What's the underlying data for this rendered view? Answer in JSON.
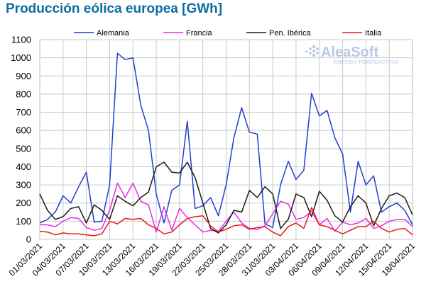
{
  "title": "Producción eólica europea [GWh]",
  "logo": {
    "name": "AleaSoft",
    "tagline": "ENERGY FORECASTING"
  },
  "chart_data": {
    "type": "line",
    "title": "Producción eólica europea [GWh]",
    "xlabel": "",
    "ylabel": "",
    "ylim": [
      0,
      1100
    ],
    "yticks": [
      0,
      100,
      200,
      300,
      400,
      500,
      600,
      700,
      800,
      900,
      1000,
      1100
    ],
    "grid": true,
    "legend": "top",
    "x": [
      "01/03/2021",
      "02/03/2021",
      "03/03/2021",
      "04/03/2021",
      "05/03/2021",
      "06/03/2021",
      "07/03/2021",
      "08/03/2021",
      "09/03/2021",
      "10/03/2021",
      "11/03/2021",
      "12/03/2021",
      "13/03/2021",
      "14/03/2021",
      "15/03/2021",
      "16/03/2021",
      "17/03/2021",
      "18/03/2021",
      "19/03/2021",
      "20/03/2021",
      "21/03/2021",
      "22/03/2021",
      "23/03/2021",
      "24/03/2021",
      "25/03/2021",
      "26/03/2021",
      "27/03/2021",
      "28/03/2021",
      "29/03/2021",
      "30/03/2021",
      "31/03/2021",
      "01/04/2021",
      "02/04/2021",
      "03/04/2021",
      "04/04/2021",
      "05/04/2021",
      "06/04/2021",
      "07/04/2021",
      "08/04/2021",
      "09/04/2021",
      "10/04/2021",
      "11/04/2021",
      "12/04/2021",
      "13/04/2021",
      "14/04/2021",
      "15/04/2021",
      "16/04/2021",
      "17/04/2021",
      "18/04/2021"
    ],
    "xtick_labels": [
      "01/03/2021",
      "04/03/2021",
      "07/03/2021",
      "10/03/2021",
      "13/03/2021",
      "16/03/2021",
      "19/03/2021",
      "22/03/2021",
      "25/03/2021",
      "28/03/2021",
      "31/03/2021",
      "03/04/2021",
      "06/04/2021",
      "09/04/2021",
      "12/04/2021",
      "15/04/2021",
      "18/04/2021"
    ],
    "series": [
      {
        "name": "Alemania",
        "color": "#1f3fd4",
        "values": [
          90,
          110,
          150,
          240,
          200,
          290,
          370,
          95,
          100,
          300,
          1025,
          990,
          1000,
          740,
          600,
          250,
          90,
          270,
          300,
          650,
          170,
          185,
          230,
          130,
          300,
          560,
          725,
          590,
          580,
          85,
          65,
          300,
          430,
          330,
          380,
          805,
          680,
          710,
          560,
          470,
          150,
          430,
          300,
          350,
          150,
          180,
          200,
          160,
          80
        ]
      },
      {
        "name": "Francia",
        "color": "#e62ee6",
        "values": [
          80,
          80,
          70,
          100,
          120,
          115,
          65,
          50,
          60,
          160,
          310,
          230,
          310,
          210,
          190,
          40,
          180,
          50,
          170,
          120,
          80,
          40,
          50,
          45,
          100,
          150,
          90,
          60,
          55,
          75,
          140,
          210,
          195,
          110,
          120,
          155,
          80,
          115,
          45,
          95,
          80,
          90,
          115,
          60,
          75,
          100,
          110,
          110,
          70
        ]
      },
      {
        "name": "Pen. Ibérica",
        "color": "#1a1a1a",
        "values": [
          250,
          160,
          110,
          125,
          170,
          180,
          90,
          190,
          160,
          110,
          240,
          210,
          185,
          230,
          260,
          400,
          425,
          370,
          365,
          425,
          340,
          200,
          60,
          35,
          80,
          160,
          150,
          270,
          230,
          290,
          250,
          60,
          110,
          250,
          230,
          125,
          265,
          215,
          130,
          95,
          180,
          240,
          200,
          75,
          170,
          240,
          255,
          230,
          135
        ]
      },
      {
        "name": "Italia",
        "color": "#e81818",
        "values": [
          45,
          40,
          25,
          35,
          30,
          30,
          25,
          20,
          30,
          100,
          85,
          115,
          110,
          115,
          80,
          60,
          30,
          40,
          80,
          115,
          125,
          130,
          75,
          40,
          55,
          75,
          80,
          55,
          65,
          70,
          40,
          20,
          70,
          90,
          60,
          175,
          80,
          70,
          50,
          30,
          50,
          70,
          70,
          100,
          60,
          40,
          55,
          60,
          25
        ]
      }
    ]
  }
}
